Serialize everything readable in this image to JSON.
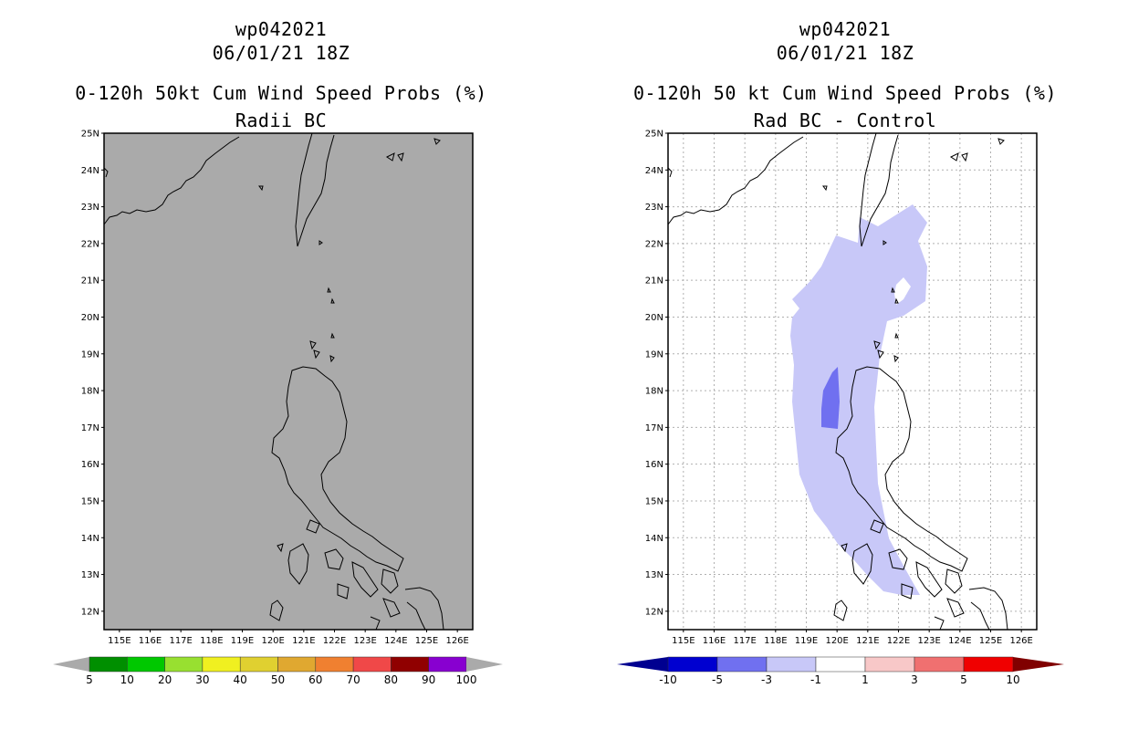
{
  "left_panel": {
    "storm_id": "wp042021",
    "datetime": "06/01/21 18Z",
    "title": "0-120h 50kt Cum Wind Speed Probs (%)",
    "subtitle": "Radii BC",
    "background_color": "#aaaaaa",
    "colorbar": {
      "labels": [
        "5",
        "10",
        "20",
        "30",
        "40",
        "50",
        "60",
        "70",
        "80",
        "90",
        "100"
      ],
      "colors": [
        "#008f00",
        "#00c800",
        "#98e030",
        "#f0f020",
        "#e0d030",
        "#e0a830",
        "#f08030",
        "#f04848",
        "#900000",
        "#8800d0"
      ],
      "extend_color": "#aaaaaa"
    }
  },
  "right_panel": {
    "storm_id": "wp042021",
    "datetime": "06/01/21 18Z",
    "title": "0-120h 50 kt Cum Wind Speed Probs (%)",
    "subtitle": "Rad BC - Control",
    "background_color": "#ffffff",
    "fill_light_color": "#c8c8f8",
    "fill_dark_color": "#7070f0",
    "colorbar": {
      "labels": [
        "-10",
        "-5",
        "-3",
        "-1",
        "1",
        "3",
        "5",
        "10"
      ],
      "colors": [
        "#0000d0",
        "#7070f0",
        "#c8c8f8",
        "#ffffff",
        "#f8c8c8",
        "#f07070",
        "#f00000"
      ],
      "extend_low": "#000090",
      "extend_high": "#800000"
    }
  },
  "map": {
    "lon_labels": [
      "115E",
      "116E",
      "117E",
      "118E",
      "119E",
      "120E",
      "121E",
      "122E",
      "123E",
      "124E",
      "125E",
      "126E"
    ],
    "lat_labels": [
      "25N",
      "24N",
      "23N",
      "22N",
      "21N",
      "20N",
      "19N",
      "18N",
      "17N",
      "16N",
      "15N",
      "14N",
      "13N",
      "12N"
    ],
    "lon_min": 114.5,
    "lon_max": 126.5,
    "lat_min": 11.5,
    "lat_max": 25.0
  }
}
